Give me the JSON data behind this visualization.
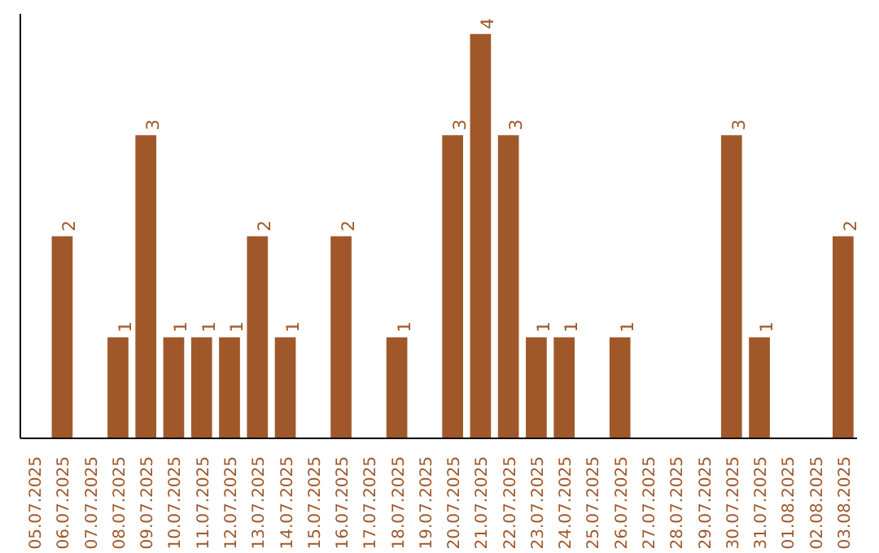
{
  "chart_data": {
    "type": "bar",
    "color": "#a0582a",
    "categories": [
      "05.07.2025",
      "06.07.2025",
      "07.07.2025",
      "08.07.2025",
      "09.07.2025",
      "10.07.2025",
      "11.07.2025",
      "12.07.2025",
      "13.07.2025",
      "14.07.2025",
      "15.07.2025",
      "16.07.2025",
      "17.07.2025",
      "18.07.2025",
      "19.07.2025",
      "20.07.2025",
      "21.07.2025",
      "22.07.2025",
      "23.07.2025",
      "24.07.2025",
      "25.07.2025",
      "26.07.2025",
      "27.07.2025",
      "28.07.2025",
      "29.07.2025",
      "30.07.2025",
      "31.07.2025",
      "01.08.2025",
      "02.08.2025",
      "03.08.2025"
    ],
    "values": [
      0,
      2,
      0,
      1,
      3,
      1,
      1,
      1,
      2,
      1,
      0,
      2,
      0,
      1,
      0,
      3,
      4,
      3,
      1,
      1,
      0,
      1,
      0,
      0,
      0,
      3,
      1,
      0,
      0,
      2
    ],
    "value_labels": [
      null,
      "2",
      null,
      "1",
      "3",
      "1",
      "1",
      "1",
      "2",
      "1",
      null,
      "2",
      null,
      "1",
      null,
      "3",
      "4",
      "3",
      "1",
      "1",
      null,
      "1",
      null,
      null,
      null,
      "3",
      "1",
      null,
      null,
      "2"
    ],
    "grid": false,
    "tick_labels": "x"
  }
}
